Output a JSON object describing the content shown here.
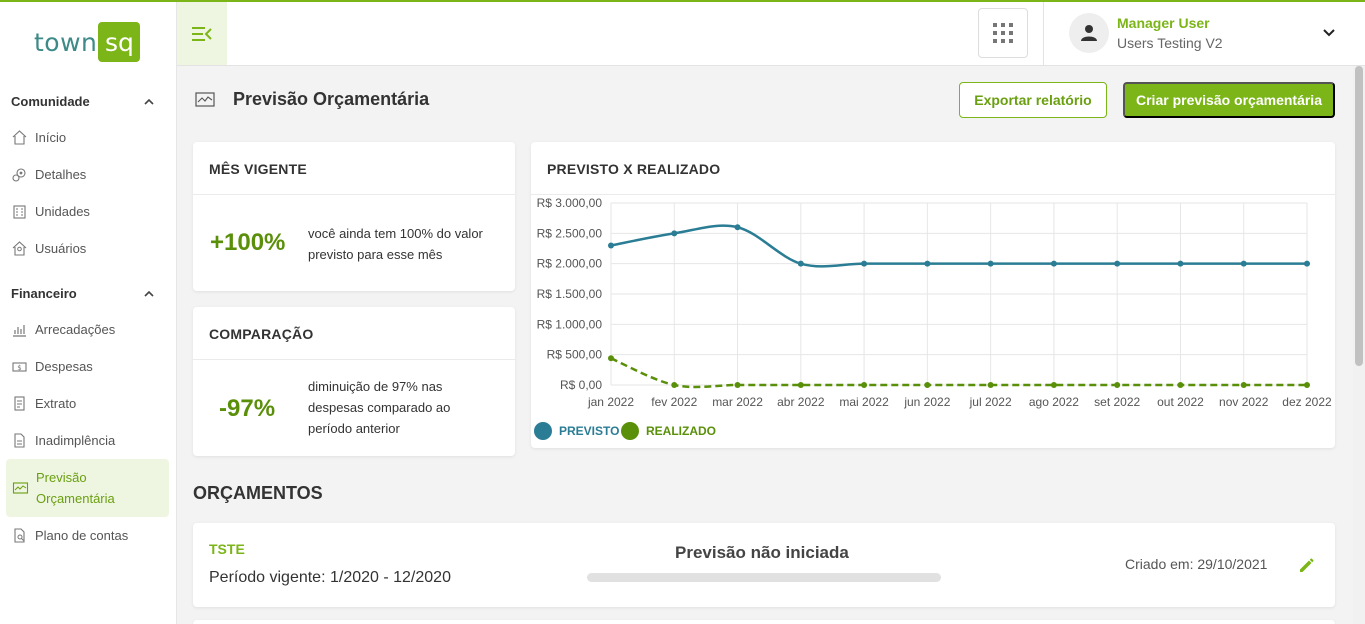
{
  "brand": {
    "logo_left": "town",
    "logo_right": "sq",
    "accent": "#7cb518",
    "teal": "#2a7d94",
    "green_dark": "#5a8f0a"
  },
  "sidebar": {
    "sections": [
      {
        "title": "Comunidade",
        "items": [
          {
            "label": "Início",
            "icon": "home-icon"
          },
          {
            "label": "Detalhes",
            "icon": "gears-icon"
          },
          {
            "label": "Unidades",
            "icon": "building-icon"
          },
          {
            "label": "Usuários",
            "icon": "user-home-icon"
          }
        ]
      },
      {
        "title": "Financeiro",
        "items": [
          {
            "label": "Arrecadações",
            "icon": "chart-icon"
          },
          {
            "label": "Despesas",
            "icon": "money-icon"
          },
          {
            "label": "Extrato",
            "icon": "receipt-icon"
          },
          {
            "label": "Inadimplência",
            "icon": "document-icon"
          },
          {
            "label": "Previsão Orçamentária",
            "icon": "monitor-chart-icon",
            "active": true
          },
          {
            "label": "Plano de contas",
            "icon": "file-search-icon"
          }
        ]
      }
    ]
  },
  "header": {
    "user_name": "Manager User",
    "user_org": "Users Testing V2"
  },
  "page": {
    "title": "Previsão Orçamentária",
    "export_label": "Exportar relatório",
    "create_label": "Criar previsão orçamentária"
  },
  "cards": {
    "current_month": {
      "title": "MÊS VIGENTE",
      "value": "+100%",
      "desc": "você ainda tem 100% do valor previsto para esse mês"
    },
    "comparison": {
      "title": "COMPARAÇÃO",
      "value": "-97%",
      "desc": "diminuição de 97% nas despesas comparado ao período anterior"
    },
    "chart_title": "PREVISTO X REALIZADO"
  },
  "chart_data": {
    "type": "line",
    "title": "PREVISTO X REALIZADO",
    "categories": [
      "jan 2022",
      "fev 2022",
      "mar 2022",
      "abr 2022",
      "mai 2022",
      "jun 2022",
      "jul 2022",
      "ago 2022",
      "set 2022",
      "out 2022",
      "nov 2022",
      "dez 2022"
    ],
    "y_ticks": [
      "R$ 3.000,00",
      "R$ 2.500,00",
      "R$ 2.000,00",
      "R$ 1.500,00",
      "R$ 1.000,00",
      "R$ 500,00",
      "R$ 0,00"
    ],
    "ylim": [
      0,
      3000
    ],
    "grid": true,
    "legend_position": "bottom-left",
    "series": [
      {
        "name": "PREVISTO",
        "color": "#2a7d94",
        "dashed": false,
        "values": [
          2300,
          2500,
          2600,
          2000,
          2000,
          2000,
          2000,
          2000,
          2000,
          2000,
          2000,
          2000
        ]
      },
      {
        "name": "REALIZADO",
        "color": "#5a8f0a",
        "dashed": true,
        "values": [
          440,
          0,
          0,
          0,
          0,
          0,
          0,
          0,
          0,
          0,
          0,
          0
        ]
      }
    ]
  },
  "budgets": {
    "heading": "ORÇAMENTOS",
    "items": [
      {
        "name": "TSTE",
        "period": "Período vigente: 1/2020 - 12/2020",
        "status": "Previsão não iniciada",
        "progress": 0,
        "created": "Criado em: 29/10/2021"
      }
    ]
  }
}
